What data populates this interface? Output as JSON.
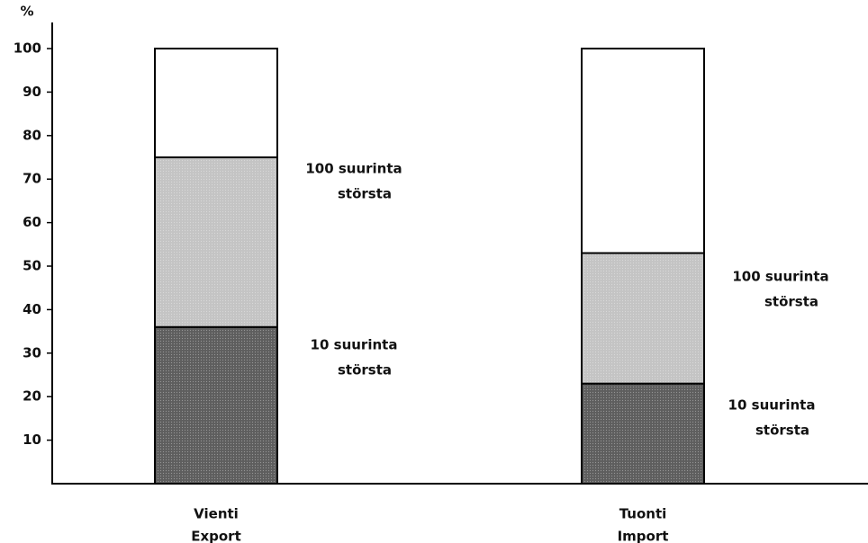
{
  "chart_data": {
    "type": "stacked_bar",
    "y_label": "%",
    "categories": [
      [
        "Vienti",
        "Export"
      ],
      [
        "Tuonti",
        "Import"
      ]
    ],
    "series": [
      {
        "color": "#5e5e5e",
        "values": [
          36,
          23
        ]
      },
      {
        "color": "#c4c4c4",
        "values": [
          39,
          30
        ]
      },
      {
        "color": "#ffffff",
        "values": [
          25,
          47
        ]
      }
    ],
    "annotations": [
      {
        "lines": [
          "100 suurinta",
          "största"
        ]
      },
      {
        "lines": [
          "10 suurinta",
          "största"
        ]
      },
      {
        "lines": [
          "100 suurinta",
          "största"
        ]
      },
      {
        "lines": [
          "10 suurinta",
          "största"
        ]
      }
    ],
    "ylim": [
      0,
      106
    ],
    "yticks": [
      10,
      20,
      30,
      40,
      50,
      60,
      70,
      80,
      90,
      100
    ],
    "grid": false
  }
}
